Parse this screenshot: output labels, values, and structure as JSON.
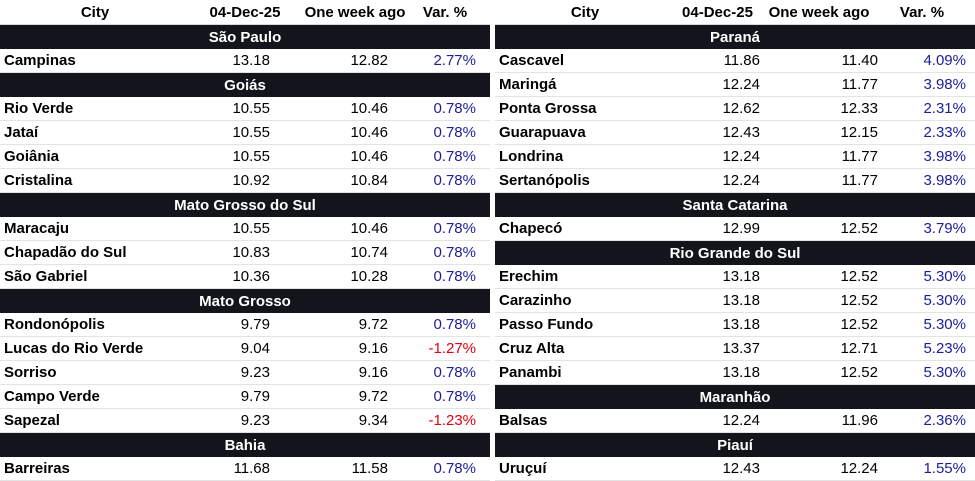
{
  "headers": {
    "city": "City",
    "date": "04-Dec-25",
    "week_ago": "One week ago",
    "var": "Var. %"
  },
  "left": [
    {
      "region": "São Paulo",
      "rows": [
        {
          "city": "Campinas",
          "now": "13.18",
          "ago": "12.82",
          "var": "2.77%"
        }
      ]
    },
    {
      "region": "Goiás",
      "rows": [
        {
          "city": "Rio Verde",
          "now": "10.55",
          "ago": "10.46",
          "var": "0.78%"
        },
        {
          "city": "Jataí",
          "now": "10.55",
          "ago": "10.46",
          "var": "0.78%"
        },
        {
          "city": "Goiânia",
          "now": "10.55",
          "ago": "10.46",
          "var": "0.78%"
        },
        {
          "city": "Cristalina",
          "now": "10.92",
          "ago": "10.84",
          "var": "0.78%"
        }
      ]
    },
    {
      "region": "Mato Grosso do Sul",
      "rows": [
        {
          "city": "Maracaju",
          "now": "10.55",
          "ago": "10.46",
          "var": "0.78%"
        },
        {
          "city": "Chapadão do Sul",
          "now": "10.83",
          "ago": "10.74",
          "var": "0.78%"
        },
        {
          "city": "São Gabriel",
          "now": "10.36",
          "ago": "10.28",
          "var": "0.78%"
        }
      ]
    },
    {
      "region": "Mato Grosso",
      "rows": [
        {
          "city": "Rondonópolis",
          "now": "9.79",
          "ago": "9.72",
          "var": "0.78%"
        },
        {
          "city": "Lucas do Rio Verde",
          "now": "9.04",
          "ago": "9.16",
          "var": "-1.27%"
        },
        {
          "city": "Sorriso",
          "now": "9.23",
          "ago": "9.16",
          "var": "0.78%"
        },
        {
          "city": "Campo Verde",
          "now": "9.79",
          "ago": "9.72",
          "var": "0.78%"
        },
        {
          "city": "Sapezal",
          "now": "9.23",
          "ago": "9.34",
          "var": "-1.23%"
        }
      ]
    },
    {
      "region": "Bahia",
      "rows": [
        {
          "city": "Barreiras",
          "now": "11.68",
          "ago": "11.58",
          "var": "0.78%"
        }
      ]
    }
  ],
  "right": [
    {
      "region": "Paraná",
      "rows": [
        {
          "city": "Cascavel",
          "now": "11.86",
          "ago": "11.40",
          "var": "4.09%"
        },
        {
          "city": "Maringá",
          "now": "12.24",
          "ago": "11.77",
          "var": "3.98%"
        },
        {
          "city": "Ponta Grossa",
          "now": "12.62",
          "ago": "12.33",
          "var": "2.31%"
        },
        {
          "city": "Guarapuava",
          "now": "12.43",
          "ago": "12.15",
          "var": "2.33%"
        },
        {
          "city": "Londrina",
          "now": "12.24",
          "ago": "11.77",
          "var": "3.98%"
        },
        {
          "city": "Sertanópolis",
          "now": "12.24",
          "ago": "11.77",
          "var": "3.98%"
        }
      ]
    },
    {
      "region": "Santa Catarina",
      "rows": [
        {
          "city": "Chapecó",
          "now": "12.99",
          "ago": "12.52",
          "var": "3.79%"
        }
      ]
    },
    {
      "region": "Rio Grande do Sul",
      "rows": [
        {
          "city": "Erechim",
          "now": "13.18",
          "ago": "12.52",
          "var": "5.30%"
        },
        {
          "city": "Carazinho",
          "now": "13.18",
          "ago": "12.52",
          "var": "5.30%"
        },
        {
          "city": "Passo Fundo",
          "now": "13.18",
          "ago": "12.52",
          "var": "5.30%"
        },
        {
          "city": "Cruz Alta",
          "now": "13.37",
          "ago": "12.71",
          "var": "5.23%"
        },
        {
          "city": "Panambi",
          "now": "13.18",
          "ago": "12.52",
          "var": "5.30%"
        }
      ]
    },
    {
      "region": "Maranhão",
      "rows": [
        {
          "city": "Balsas",
          "now": "12.24",
          "ago": "11.96",
          "var": "2.36%"
        }
      ]
    },
    {
      "region": "Piauí",
      "rows": [
        {
          "city": "Uruçuí",
          "now": "12.43",
          "ago": "12.24",
          "var": "1.55%"
        }
      ]
    }
  ]
}
